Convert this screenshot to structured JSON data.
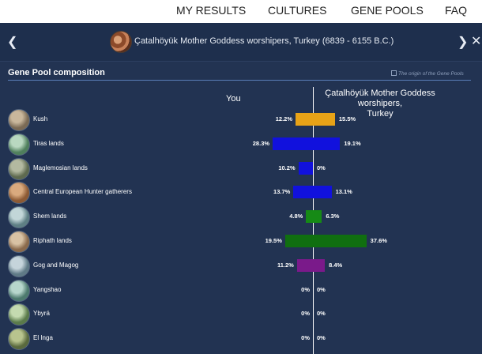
{
  "nav": {
    "items": [
      "MY RESULTS",
      "CULTURES",
      "GENE POOLS",
      "FAQ"
    ]
  },
  "header": {
    "title": "Çatalhöyük Mother Goddess worshipers, Turkey (6839 - 6155 B.C.)",
    "prev_icon": "chevron-left-icon",
    "next_icon": "chevron-right-icon",
    "close_icon": "close-icon"
  },
  "section": {
    "title": "Gene Pool composition",
    "origin_link": "The origin of the Gene Pools"
  },
  "columns": {
    "you": "You",
    "other_line1": "Çatalhöyük Mother Goddess worshipers,",
    "other_line2": "Turkey"
  },
  "rows": [
    {
      "label": "Kush",
      "you": 12.2,
      "other": 15.5,
      "you_text": "12.2%",
      "other_text": "15.5%",
      "color": "#e8a317",
      "avatar": [
        "#7a6a55",
        "#c9b79c"
      ]
    },
    {
      "label": "Tiras lands",
      "you": 28.3,
      "other": 19.1,
      "you_text": "28.3%",
      "other_text": "19.1%",
      "color": "#1111dd",
      "avatar": [
        "#4f7f5c",
        "#b9d8c0"
      ]
    },
    {
      "label": "Maglemosian lands",
      "you": 10.2,
      "other": 0,
      "you_text": "10.2%",
      "other_text": "0%",
      "color": "#1111dd",
      "avatar": [
        "#5e6a4f",
        "#b3b9a0"
      ]
    },
    {
      "label": "Central European Hunter gatherers",
      "you": 13.7,
      "other": 13.1,
      "you_text": "13.7%",
      "other_text": "13.1%",
      "color": "#1111dd",
      "avatar": [
        "#8c5a34",
        "#d9aa7e"
      ]
    },
    {
      "label": "Shem lands",
      "you": 4.8,
      "other": 6.3,
      "you_text": "4.8%",
      "other_text": "6.3%",
      "color": "#168a16",
      "avatar": [
        "#5e7f84",
        "#c2d6d8"
      ]
    },
    {
      "label": "Riphath lands",
      "you": 19.5,
      "other": 37.6,
      "you_text": "19.5%",
      "other_text": "37.6%",
      "color": "#106f10",
      "avatar": [
        "#8a6a4c",
        "#d8c2a4"
      ]
    },
    {
      "label": "Gog and Magog",
      "you": 11.2,
      "other": 8.4,
      "you_text": "11.2%",
      "other_text": "8.4%",
      "color": "#7a1a8a",
      "avatar": [
        "#5f7a86",
        "#c5d4db"
      ]
    },
    {
      "label": "Yangshao",
      "you": 0,
      "other": 0,
      "you_text": "0%",
      "other_text": "0%",
      "color": "#1111dd",
      "avatar": [
        "#4d7a6e",
        "#b7d6cc"
      ]
    },
    {
      "label": "Ybyrá",
      "you": 0,
      "other": 0,
      "you_text": "0%",
      "other_text": "0%",
      "color": "#1111dd",
      "avatar": [
        "#5a7a4a",
        "#c4dab0"
      ]
    },
    {
      "label": "El Inga",
      "you": 0,
      "other": 0,
      "you_text": "0%",
      "other_text": "0%",
      "color": "#1111dd",
      "avatar": [
        "#5a6a3e",
        "#b8c48e"
      ]
    }
  ]
}
